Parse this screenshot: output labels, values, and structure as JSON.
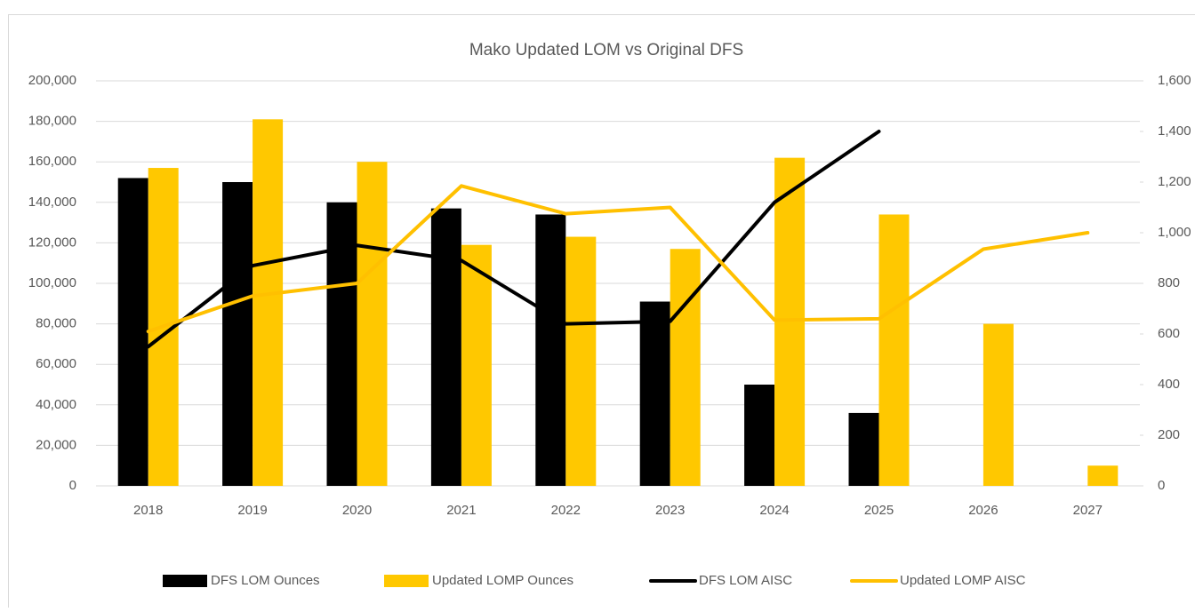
{
  "chart_data": {
    "type": "combo",
    "title": "Mako Updated LOM vs Original DFS",
    "categories": [
      "2018",
      "2019",
      "2020",
      "2021",
      "2022",
      "2023",
      "2024",
      "2025",
      "2026",
      "2027"
    ],
    "series": [
      {
        "name": "DFS LOM Ounces",
        "kind": "bar",
        "color": "#000000",
        "values": [
          152000,
          150000,
          140000,
          137000,
          134000,
          91000,
          50000,
          36000,
          null,
          null
        ]
      },
      {
        "name": "Updated LOMP Ounces",
        "kind": "bar",
        "color": "#ffc800",
        "values": [
          157000,
          181000,
          160000,
          119000,
          123000,
          117000,
          162000,
          134000,
          80000,
          10000
        ]
      },
      {
        "name": "DFS LOM AISC",
        "kind": "line",
        "axis": "y2",
        "color": "#000000",
        "values": [
          550,
          870,
          950,
          890,
          640,
          650,
          1120,
          1400,
          null,
          null
        ]
      },
      {
        "name": "Updated LOMP AISC",
        "kind": "line",
        "axis": "y2",
        "color": "#ffc000",
        "values": [
          610,
          750,
          800,
          1185,
          1075,
          1100,
          655,
          660,
          935,
          1000
        ]
      }
    ],
    "ylim": [
      0,
      200000
    ],
    "yticks": [
      0,
      {
        "value": 20000,
        "label": "20,000"
      },
      {
        "value": 40000,
        "label": "40,000"
      },
      {
        "value": 60000,
        "label": "60,000"
      },
      {
        "value": 80000,
        "label": "80,000"
      },
      {
        "value": 100000,
        "label": "100,000"
      },
      {
        "value": 120000,
        "label": "120,000"
      },
      {
        "value": 140000,
        "label": "140,000"
      },
      {
        "value": 160000,
        "label": "160,000"
      },
      {
        "value": 180000,
        "label": "180,000"
      },
      {
        "value": 200000,
        "label": "200,000"
      }
    ],
    "y2lim": [
      0,
      1600
    ],
    "y2ticks": [
      0,
      200,
      400,
      600,
      800,
      {
        "value": 1000,
        "label": "1,000"
      },
      {
        "value": 1200,
        "label": "1,200"
      },
      {
        "value": 1400,
        "label": "1,400"
      },
      {
        "value": 1600,
        "label": "1,600"
      }
    ],
    "grid": true
  }
}
